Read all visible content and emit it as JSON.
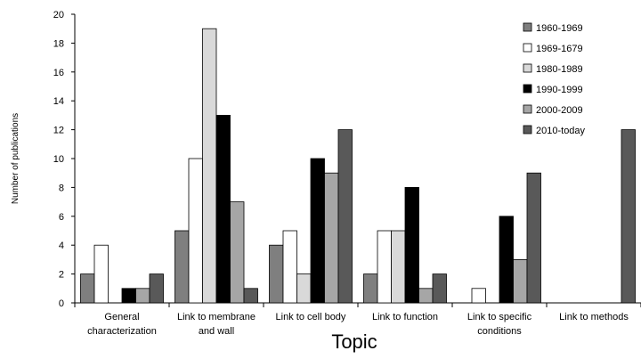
{
  "chart_data": {
    "type": "bar",
    "title": "",
    "xlabel": "Topic",
    "ylabel": "Number of publications",
    "ylim": [
      0,
      20
    ],
    "yticks": [
      0,
      2,
      4,
      6,
      8,
      10,
      12,
      14,
      16,
      18,
      20
    ],
    "categories": [
      [
        "General",
        "characterization"
      ],
      [
        "Link to membrane",
        "and wall"
      ],
      [
        "Link to cell body"
      ],
      [
        "Link to function"
      ],
      [
        "Link to specific",
        "conditions"
      ],
      [
        "Link to methods"
      ]
    ],
    "series": [
      {
        "name": "1960-1969",
        "color": "#7f7f7f",
        "values": [
          2,
          5,
          4,
          2,
          0,
          0
        ]
      },
      {
        "name": "1969-1679",
        "color": "#ffffff",
        "values": [
          4,
          10,
          5,
          5,
          1,
          0
        ]
      },
      {
        "name": "1980-1989",
        "color": "#d9d9d9",
        "values": [
          0,
          19,
          2,
          5,
          0,
          0
        ]
      },
      {
        "name": "1990-1999",
        "color": "#000000",
        "values": [
          1,
          13,
          10,
          8,
          6,
          0
        ]
      },
      {
        "name": "2000-2009",
        "color": "#a6a6a6",
        "values": [
          1,
          7,
          9,
          1,
          3,
          0
        ]
      },
      {
        "name": "2010-today",
        "color": "#595959",
        "values": [
          2,
          1,
          12,
          2,
          9,
          12
        ]
      }
    ],
    "legend_position": "top-right",
    "grid": false
  }
}
